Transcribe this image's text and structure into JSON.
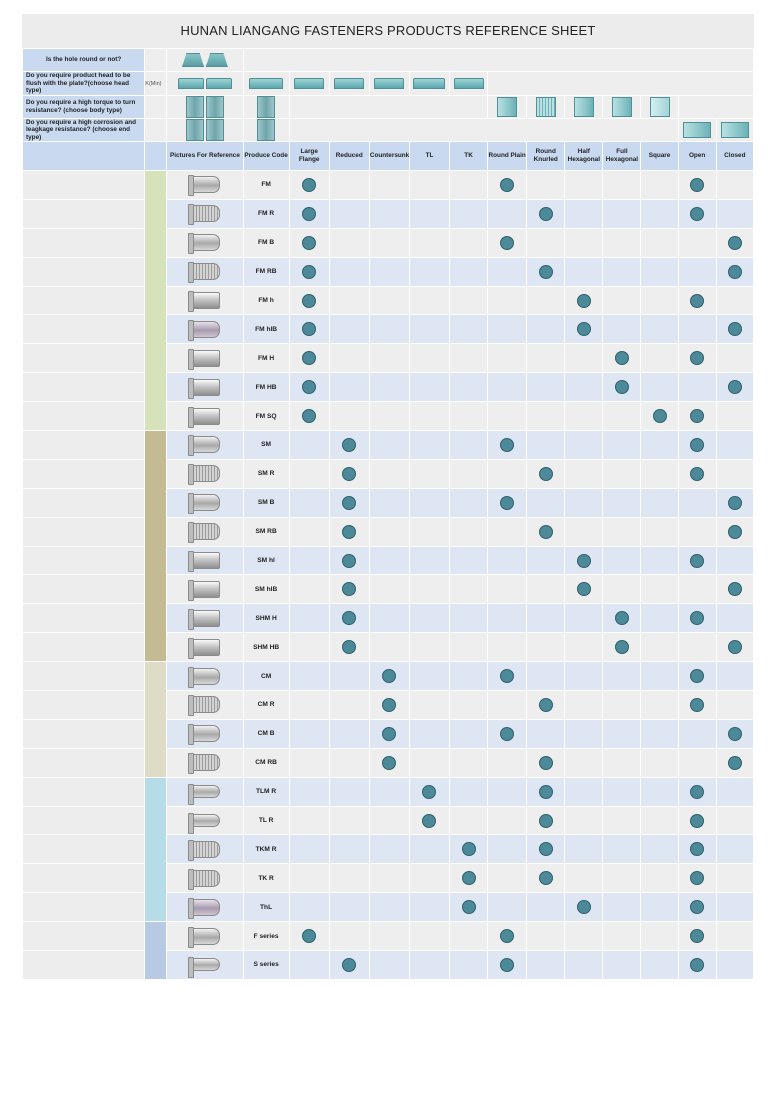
{
  "title": "HUNAN LIANGANG FASTENERS PRODUCTS REFERENCE SHEET",
  "questions": [
    {
      "text": "Is the hole round or not?"
    },
    {
      "text": "Do you require product head to be flush with the plate?(choose head type)",
      "note": "K(Min)"
    },
    {
      "text": "Do you require a high torque to turn resistance?     (choose body type)"
    },
    {
      "text": "Do you require a high corrosion and leagkage resistance?  (choose end type)"
    }
  ],
  "columns": {
    "pictures": "Pictures For Reference",
    "code": "Produce Code",
    "head": [
      "Large Flange",
      "Reduced",
      "Countersunk",
      "TL",
      "TK"
    ],
    "body": [
      "Round Plain",
      "Round Knurled",
      "Half Hexagonal",
      "Full Hexagonal",
      "Square"
    ],
    "end": [
      "Open",
      "Closed"
    ]
  },
  "colors": {
    "header_blue": "#c9daf0",
    "row_alt": "#dde6f2",
    "row_base": "#eeeeee",
    "dot": "#4d8a99",
    "group_fm": "#d6e2b9",
    "group_sm": "#c4bb92",
    "group_cm": "#dedbc7",
    "group_tl": "#b6dde7",
    "group_fs": "#b7c9e3"
  },
  "groups": [
    {
      "key": "fm",
      "rows": 9
    },
    {
      "key": "sm",
      "rows": 8
    },
    {
      "key": "cm",
      "rows": 4
    },
    {
      "key": "tl",
      "rows": 5
    },
    {
      "key": "fs",
      "rows": 2
    }
  ],
  "products": [
    {
      "code": "FM",
      "pic": "plain",
      "head": 0,
      "body": 0,
      "end": 0
    },
    {
      "code": "FM R",
      "pic": "knurl",
      "head": 0,
      "body": 1,
      "end": 0
    },
    {
      "code": "FM B",
      "pic": "plain",
      "head": 0,
      "body": 0,
      "end": 1
    },
    {
      "code": "FM RB",
      "pic": "knurl",
      "head": 0,
      "body": 1,
      "end": 1
    },
    {
      "code": "FM h",
      "pic": "hex",
      "head": 0,
      "body": 2,
      "end": 0
    },
    {
      "code": "FM hlB",
      "pic": "bronze",
      "head": 0,
      "body": 2,
      "end": 1
    },
    {
      "code": "FM H",
      "pic": "hex",
      "head": 0,
      "body": 3,
      "end": 0
    },
    {
      "code": "FM HB",
      "pic": "hex",
      "head": 0,
      "body": 3,
      "end": 1
    },
    {
      "code": "FM SQ",
      "pic": "hex",
      "head": 0,
      "body": 4,
      "end": 0
    },
    {
      "code": "SM",
      "pic": "plain",
      "head": 1,
      "body": 0,
      "end": 0
    },
    {
      "code": "SM R",
      "pic": "knurl",
      "head": 1,
      "body": 1,
      "end": 0
    },
    {
      "code": "SM B",
      "pic": "plain",
      "head": 1,
      "body": 0,
      "end": 1
    },
    {
      "code": "SM RB",
      "pic": "knurl",
      "head": 1,
      "body": 1,
      "end": 1
    },
    {
      "code": "SM hl",
      "pic": "hex",
      "head": 1,
      "body": 2,
      "end": 0
    },
    {
      "code": "SM hlB",
      "pic": "hex",
      "head": 1,
      "body": 2,
      "end": 1
    },
    {
      "code": "SHM H",
      "pic": "hex",
      "head": 1,
      "body": 3,
      "end": 0
    },
    {
      "code": "SHM HB",
      "pic": "hex",
      "head": 1,
      "body": 3,
      "end": 1
    },
    {
      "code": "CM",
      "pic": "plain",
      "head": 2,
      "body": 0,
      "end": 0
    },
    {
      "code": "CM R",
      "pic": "knurl",
      "head": 2,
      "body": 1,
      "end": 0
    },
    {
      "code": "CM B",
      "pic": "plain",
      "head": 2,
      "body": 0,
      "end": 1
    },
    {
      "code": "CM RB",
      "pic": "knurl",
      "head": 2,
      "body": 1,
      "end": 1
    },
    {
      "code": "TLM R",
      "pic": "thin",
      "head": 3,
      "body": 1,
      "end": 0
    },
    {
      "code": "TL R",
      "pic": "thin",
      "head": 3,
      "body": 1,
      "end": 0
    },
    {
      "code": "TKM R",
      "pic": "knurl",
      "head": 4,
      "body": 1,
      "end": 0
    },
    {
      "code": "TK R",
      "pic": "knurl",
      "head": 4,
      "body": 1,
      "end": 0
    },
    {
      "code": "ThL",
      "pic": "bronze",
      "head": 4,
      "body": 2,
      "end": 0
    },
    {
      "code": "F series",
      "pic": "plain",
      "head": 0,
      "body": 0,
      "end": 0
    },
    {
      "code": "S series",
      "pic": "thin",
      "head": 1,
      "body": 0,
      "end": 0
    }
  ]
}
